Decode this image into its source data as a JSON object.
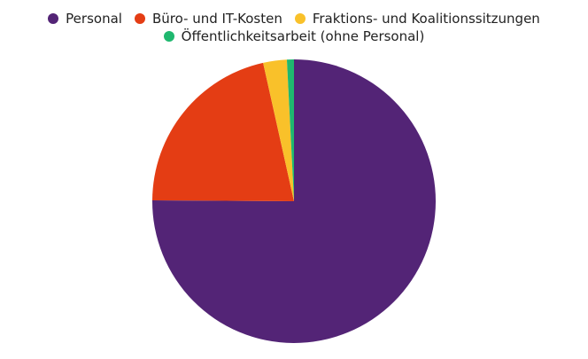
{
  "chart_data": {
    "type": "pie",
    "categories": [
      "Personal",
      "Büro- und IT-Kosten",
      "Fraktions- und Koalitionssitzungen",
      "Öffentlichkeitsarbeit (ohne Personal)"
    ],
    "values": [
      75.1,
      21.4,
      2.7,
      0.8
    ],
    "colors": [
      "#532476",
      "#e43d14",
      "#f9c12a",
      "#1fb86f"
    ]
  }
}
